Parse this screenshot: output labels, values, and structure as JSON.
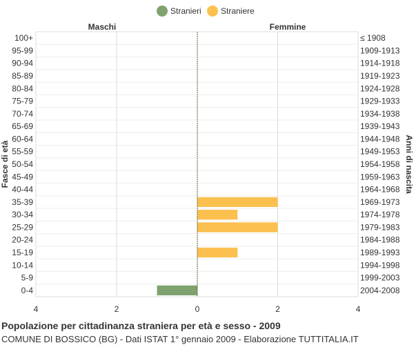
{
  "chart_data": {
    "type": "bar",
    "orientation": "horizontal",
    "layout": "population-pyramid",
    "legend": {
      "position": "top",
      "items": [
        {
          "label": "Stranieri",
          "color": "#7fa36f"
        },
        {
          "label": "Straniere",
          "color": "#fcc04f"
        }
      ]
    },
    "side_labels": {
      "left": "Maschi",
      "right": "Femmine"
    },
    "ylabel_left": "Fasce di età",
    "ylabel_right": "Anni di nascita",
    "categories": [
      "100+",
      "95-99",
      "90-94",
      "85-89",
      "80-84",
      "75-79",
      "70-74",
      "65-69",
      "60-64",
      "55-59",
      "50-54",
      "45-49",
      "40-44",
      "35-39",
      "30-34",
      "25-29",
      "20-24",
      "15-19",
      "10-14",
      "5-9",
      "0-4"
    ],
    "birth_years": [
      "≤ 1908",
      "1909-1913",
      "1914-1918",
      "1919-1923",
      "1924-1928",
      "1929-1933",
      "1934-1938",
      "1939-1943",
      "1944-1948",
      "1949-1953",
      "1954-1958",
      "1959-1963",
      "1964-1968",
      "1969-1973",
      "1974-1978",
      "1979-1983",
      "1984-1988",
      "1989-1993",
      "1994-1998",
      "1999-2003",
      "2004-2008"
    ],
    "series": [
      {
        "name": "Stranieri",
        "side": "left",
        "color": "#7fa36f",
        "values": [
          0,
          0,
          0,
          0,
          0,
          0,
          0,
          0,
          0,
          0,
          0,
          0,
          0,
          0,
          0,
          0,
          0,
          0,
          0,
          0,
          1
        ]
      },
      {
        "name": "Straniere",
        "side": "right",
        "color": "#fcc04f",
        "values": [
          0,
          0,
          0,
          0,
          0,
          0,
          0,
          0,
          0,
          0,
          0,
          0,
          0,
          2,
          1,
          2,
          0,
          1,
          0,
          0,
          0
        ]
      }
    ],
    "xlim": [
      -4,
      4
    ],
    "x_ticks": [
      -4,
      -2,
      0,
      2,
      4
    ],
    "x_tick_labels": [
      "4",
      "2",
      "0",
      "2",
      "4"
    ],
    "grid": true
  },
  "footer": {
    "title": "Popolazione per cittadinanza straniera per età e sesso - 2009",
    "subtitle": "COMUNE DI BOSSICO (BG) - Dati ISTAT 1° gennaio 2009 - Elaborazione TUTTITALIA.IT"
  }
}
